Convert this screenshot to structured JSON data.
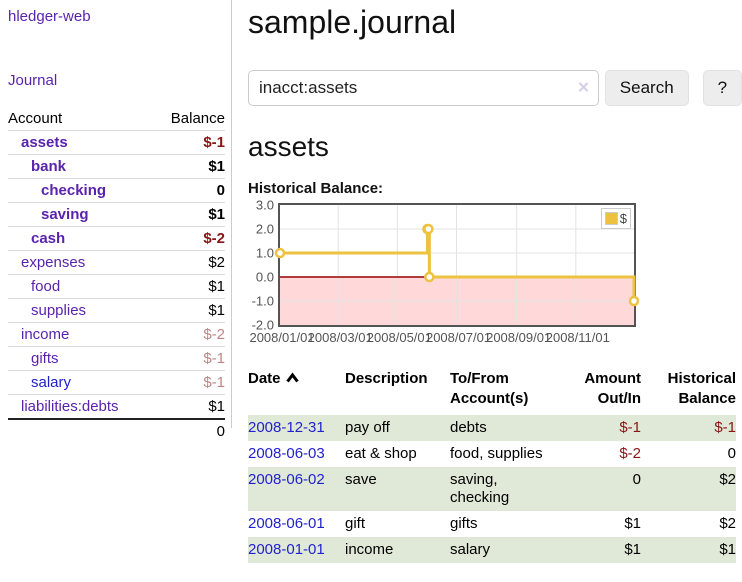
{
  "colors": {
    "brand_purple": "#5a23ad",
    "link_blue": "#2222cc",
    "negative_dark": "#8b1515",
    "negative_muted": "#c08585",
    "row_green": "#e0e9d8",
    "series_gold": "#edc240",
    "negative_region_pink": "#ffd9d9",
    "zero_line_red": "#990000",
    "axis_gray": "#545454"
  },
  "sidebar": {
    "brand": "hledger-web",
    "journal_link": "Journal",
    "accounts_table": {
      "col_account": "Account",
      "col_balance": "Balance",
      "rows": [
        {
          "name": "assets",
          "balance": "$-1"
        },
        {
          "name": "bank",
          "balance": "$1"
        },
        {
          "name": "checking",
          "balance": "0"
        },
        {
          "name": "saving",
          "balance": "$1"
        },
        {
          "name": "cash",
          "balance": "$-2"
        },
        {
          "name": "expenses",
          "balance": "$2"
        },
        {
          "name": "food",
          "balance": "$1"
        },
        {
          "name": "supplies",
          "balance": "$1"
        },
        {
          "name": "income",
          "balance": "$-2"
        },
        {
          "name": "gifts",
          "balance": "$-1"
        },
        {
          "name": "salary",
          "balance": "$-1"
        },
        {
          "name": "liabilities:debts",
          "balance": "$1"
        }
      ],
      "total": "0"
    }
  },
  "main": {
    "title": "sample.journal",
    "search": {
      "value": "inacct:assets",
      "clear_icon": "✕",
      "search_button": "Search",
      "help_button": "?"
    },
    "account_heading": "assets",
    "chart_heading": "Historical Balance:",
    "register_table": {
      "headers": {
        "date": "Date",
        "description": "Description",
        "tofrom_l1": "To/From",
        "tofrom_l2": "Account(s)",
        "amount_l1": "Amount",
        "amount_l2": "Out/In",
        "balance_l1": "Historical",
        "balance_l2": "Balance"
      },
      "rows": [
        {
          "date": "2008-12-31",
          "description": "pay off",
          "tofrom": "debts",
          "amount": "$-1",
          "balance": "$-1"
        },
        {
          "date": "2008-06-03",
          "description": "eat & shop",
          "tofrom": "food, supplies",
          "amount": "$-2",
          "balance": "0"
        },
        {
          "date": "2008-06-02",
          "description": "save",
          "tofrom": "saving,\nchecking",
          "amount": "0",
          "balance": "$2"
        },
        {
          "date": "2008-06-01",
          "description": "gift",
          "tofrom": "gifts",
          "amount": "$1",
          "balance": "$2"
        },
        {
          "date": "2008-01-01",
          "description": "income",
          "tofrom": "salary",
          "amount": "$1",
          "balance": "$1"
        }
      ]
    }
  },
  "chart_data": {
    "type": "line",
    "step": true,
    "title": "Historical Balance",
    "series": [
      {
        "name": "$",
        "color": "#edc240",
        "points": [
          [
            "2008-01-01",
            1
          ],
          [
            "2008-06-01",
            2
          ],
          [
            "2008-06-02",
            2
          ],
          [
            "2008-06-03",
            0
          ],
          [
            "2008-12-31",
            -1
          ]
        ]
      }
    ],
    "xlim": [
      "2008-01-01",
      "2008-12-31"
    ],
    "ylim": [
      -2,
      3
    ],
    "x_ticks": [
      "2008/01/01",
      "2008/03/01",
      "2008/05/01",
      "2008/07/01",
      "2008/09/01",
      "2008/11/01"
    ],
    "y_ticks": [
      "3.0",
      "2.0",
      "1.0",
      "0.0",
      "-1.0",
      "-2.0"
    ],
    "grid": true,
    "legend_position": "top-right",
    "negative_region_color": "#ffd9d9",
    "zero_line_color": "#990000"
  }
}
